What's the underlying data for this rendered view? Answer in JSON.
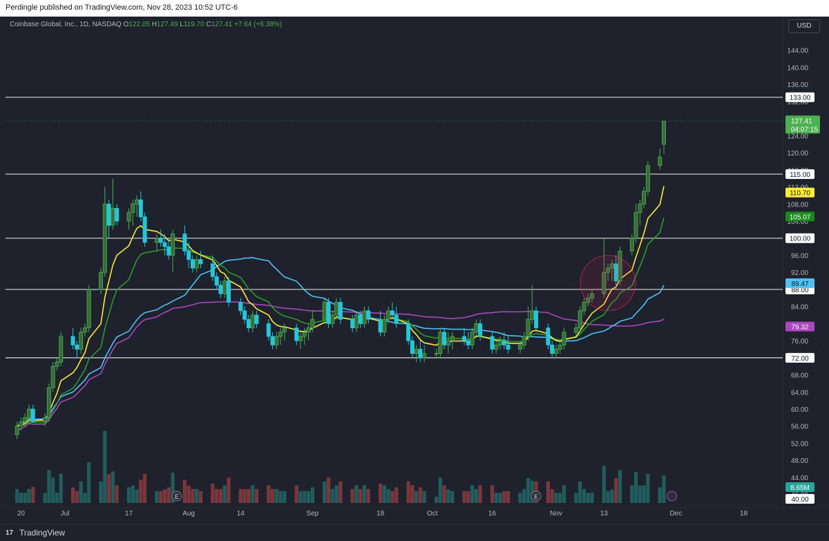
{
  "header": {
    "published": "Perdingle published on TradingView.com, Nov 28, 2023 10:52 UTC-6"
  },
  "legend": {
    "symbol": "Coinbase Global, Inc., 1D, NASDAQ",
    "o_label": "O",
    "o": "122.05",
    "h_label": "H",
    "h": "127.49",
    "l_label": "L",
    "l": "119.70",
    "c_label": "C",
    "c": "127.41",
    "change": "+7.64 (+6.38%)"
  },
  "currency": "USD",
  "footer": {
    "brand": "TradingView"
  },
  "colors": {
    "bg": "#1e222d",
    "up": "#4caf50",
    "down": "#26c6da",
    "ema_yellow": "#ffeb3b",
    "ema_green": "#2e9a2e",
    "ema_blue": "#4fc3f7",
    "ema_purple": "#ab47bc",
    "level": "#c8c8c8"
  },
  "price_badges": {
    "current": "127.41",
    "countdown": "04:07:15",
    "volume": "8.65M",
    "hline_133": "133.00",
    "hline_115": "115.00",
    "hline_100": "100.00",
    "hline_88": "88.00",
    "hline_72": "72.00",
    "ma_yellow": "110.70",
    "ma_green": "105.07",
    "ma_blue": "89.47",
    "ma_purple": "79.32",
    "vol_axis": "40.00"
  },
  "chart_data": {
    "type": "candlestick",
    "title": "Coinbase Global, Inc., 1D, NASDAQ",
    "y_ticks": [
      "144.00",
      "140.00",
      "136.00",
      "132.00",
      "128.00",
      "124.00",
      "120.00",
      "116.00",
      "112.00",
      "108.00",
      "104.00",
      "100.00",
      "96.00",
      "92.00",
      "88.00",
      "84.00",
      "80.00",
      "76.00",
      "72.00",
      "68.00",
      "64.00",
      "60.00",
      "56.00",
      "52.00",
      "48.00",
      "44.00",
      "40.00"
    ],
    "x_ticks": [
      "20",
      "Jul",
      "17",
      "Aug",
      "14",
      "Sep",
      "18",
      "Oct",
      "16",
      "Nov",
      "13",
      "Dec",
      "18"
    ],
    "x_tick_days": [
      -11,
      0,
      16,
      31,
      44,
      62,
      79,
      92,
      107,
      123,
      135,
      153,
      170
    ],
    "ylim": [
      38,
      148
    ],
    "horizontal_levels": [
      133,
      115,
      100,
      88,
      72
    ],
    "annotation": "circle near Nov 9",
    "candles": [
      [
        -12,
        54,
        57,
        53,
        56
      ],
      [
        -11,
        56,
        58,
        55,
        57
      ],
      [
        -10,
        57,
        59,
        56,
        58
      ],
      [
        -9,
        58,
        61,
        57,
        60
      ],
      [
        -8,
        60,
        61,
        57,
        57
      ],
      [
        -5,
        57,
        59,
        56,
        58
      ],
      [
        -4,
        58,
        66,
        57,
        65
      ],
      [
        -3,
        65,
        71,
        64,
        70
      ],
      [
        -2,
        70,
        72,
        69,
        71
      ],
      [
        -1,
        71,
        78,
        70,
        77
      ],
      [
        2,
        77,
        79,
        74,
        75
      ],
      [
        3,
        75,
        76,
        72,
        74
      ],
      [
        4,
        74,
        79,
        73,
        78
      ],
      [
        5,
        78,
        80,
        77,
        79
      ],
      [
        6,
        79,
        89,
        78,
        88
      ],
      [
        9,
        88,
        93,
        87,
        92
      ],
      [
        10,
        92,
        112,
        91,
        108
      ],
      [
        11,
        108,
        109,
        100,
        103
      ],
      [
        12,
        103,
        114,
        102,
        107
      ],
      [
        13,
        107,
        108,
        103,
        104
      ],
      [
        16,
        104,
        107,
        102,
        106
      ],
      [
        17,
        106,
        109,
        103,
        108
      ],
      [
        18,
        108,
        110,
        105,
        109
      ],
      [
        19,
        109,
        111,
        104,
        105
      ],
      [
        20,
        105,
        106,
        98,
        99
      ],
      [
        23,
        99,
        101,
        97,
        100
      ],
      [
        24,
        100,
        102,
        98,
        99
      ],
      [
        25,
        99,
        101,
        96,
        98
      ],
      [
        26,
        98,
        100,
        95,
        96
      ],
      [
        27,
        96,
        102,
        92,
        101
      ],
      [
        30,
        101,
        103,
        96,
        97
      ],
      [
        31,
        97,
        99,
        93,
        95
      ],
      [
        32,
        95,
        96,
        92,
        93
      ],
      [
        33,
        93,
        96,
        92,
        95
      ],
      [
        34,
        95,
        97,
        93,
        94
      ],
      [
        37,
        94,
        96,
        90,
        91
      ],
      [
        38,
        91,
        92,
        88,
        89
      ],
      [
        39,
        89,
        90,
        86,
        87
      ],
      [
        40,
        87,
        91,
        86,
        90
      ],
      [
        41,
        90,
        91,
        84,
        85
      ],
      [
        44,
        85,
        86,
        82,
        83
      ],
      [
        45,
        83,
        84,
        80,
        81
      ],
      [
        46,
        81,
        82,
        78,
        79
      ],
      [
        47,
        79,
        83,
        78,
        82
      ],
      [
        48,
        82,
        83,
        79,
        80
      ],
      [
        51,
        80,
        81,
        76,
        77
      ],
      [
        52,
        77,
        78,
        74,
        75
      ],
      [
        53,
        75,
        78,
        74,
        77
      ],
      [
        54,
        77,
        79,
        75,
        78
      ],
      [
        55,
        78,
        80,
        76,
        79
      ],
      [
        58,
        79,
        80,
        75,
        76
      ],
      [
        59,
        76,
        78,
        74,
        77
      ],
      [
        60,
        77,
        79,
        75,
        78
      ],
      [
        61,
        78,
        80,
        76,
        79
      ],
      [
        62,
        79,
        83,
        78,
        81
      ],
      [
        65,
        81,
        86,
        80,
        85
      ],
      [
        66,
        85,
        86,
        79,
        80
      ],
      [
        67,
        80,
        83,
        79,
        82
      ],
      [
        68,
        82,
        86,
        81,
        85
      ],
      [
        69,
        85,
        86,
        80,
        81
      ],
      [
        72,
        81,
        82,
        78,
        79
      ],
      [
        73,
        79,
        83,
        78,
        82
      ],
      [
        74,
        82,
        83,
        79,
        80
      ],
      [
        75,
        80,
        84,
        79,
        83
      ],
      [
        76,
        83,
        84,
        80,
        81
      ],
      [
        79,
        81,
        83,
        77,
        78
      ],
      [
        80,
        78,
        82,
        77,
        81
      ],
      [
        81,
        81,
        84,
        80,
        83
      ],
      [
        82,
        83,
        85,
        81,
        82
      ],
      [
        83,
        82,
        84,
        79,
        80
      ],
      [
        86,
        80,
        81,
        75,
        76
      ],
      [
        87,
        76,
        77,
        72,
        73
      ],
      [
        88,
        73,
        75,
        71,
        74
      ],
      [
        89,
        74,
        76,
        71,
        72
      ],
      [
        90,
        72,
        75,
        71,
        73
      ],
      [
        93,
        73,
        74,
        72,
        73
      ],
      [
        94,
        73,
        79,
        72,
        78
      ],
      [
        95,
        78,
        79,
        74,
        75
      ],
      [
        96,
        75,
        78,
        73,
        76
      ],
      [
        97,
        76,
        78,
        74,
        77
      ],
      [
        100,
        77,
        79,
        75,
        76
      ],
      [
        101,
        76,
        78,
        74,
        75
      ],
      [
        102,
        75,
        79,
        74,
        78
      ],
      [
        103,
        78,
        81,
        77,
        80
      ],
      [
        104,
        80,
        81,
        76,
        77
      ],
      [
        107,
        77,
        78,
        73,
        74
      ],
      [
        108,
        74,
        76,
        73,
        75
      ],
      [
        109,
        75,
        77,
        74,
        76
      ],
      [
        110,
        76,
        78,
        74,
        75
      ],
      [
        111,
        75,
        77,
        73,
        74
      ],
      [
        114,
        74,
        76,
        73,
        75
      ],
      [
        115,
        75,
        78,
        74,
        77
      ],
      [
        116,
        77,
        84,
        76,
        81
      ],
      [
        117,
        81,
        89,
        80,
        83
      ],
      [
        118,
        83,
        84,
        78,
        79
      ],
      [
        121,
        79,
        80,
        74,
        75
      ],
      [
        122,
        75,
        76,
        72,
        73
      ],
      [
        123,
        73,
        75,
        72,
        74
      ],
      [
        124,
        74,
        76,
        73,
        75
      ],
      [
        125,
        75,
        79,
        74,
        78
      ],
      [
        128,
        78,
        80,
        77,
        79
      ],
      [
        129,
        79,
        84,
        78,
        83
      ],
      [
        130,
        83,
        86,
        82,
        85
      ],
      [
        131,
        85,
        87,
        84,
        86
      ],
      [
        132,
        86,
        88,
        85,
        87
      ],
      [
        135,
        87,
        100,
        86,
        92
      ],
      [
        136,
        92,
        94,
        90,
        93
      ],
      [
        137,
        93,
        95,
        90,
        94
      ],
      [
        138,
        94,
        96,
        88,
        90
      ],
      [
        139,
        90,
        98,
        89,
        97
      ],
      [
        142,
        97,
        101,
        96,
        100
      ],
      [
        143,
        100,
        108,
        99,
        106
      ],
      [
        144,
        106,
        109,
        103,
        108
      ],
      [
        145,
        108,
        112,
        107,
        111
      ],
      [
        146,
        111,
        118,
        110,
        117
      ],
      [
        149,
        117,
        121,
        116,
        119
      ],
      [
        150,
        122,
        127.5,
        119.7,
        127.4
      ]
    ],
    "volume_millions": [],
    "series": [
      {
        "name": "",
        "color": "#ffeb3b"
      },
      {
        "name": "",
        "color": "#2e9a2e"
      },
      {
        "name": "",
        "color": "#4fc3f7"
      },
      {
        "name": "",
        "color": "#ab47bc"
      }
    ]
  }
}
